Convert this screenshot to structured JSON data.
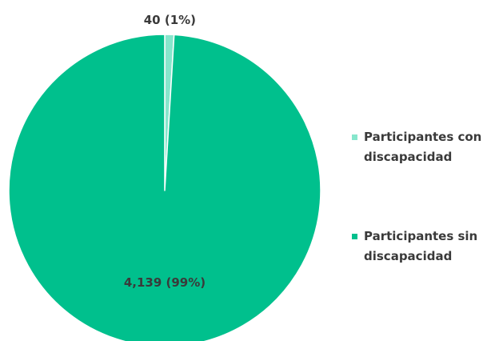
{
  "chart_data": {
    "type": "pie",
    "series": [
      {
        "name": "Participantes con discapacidad",
        "value": 40,
        "label": "40 (1%)",
        "color": "#86e6cc"
      },
      {
        "name": "Participantes sin discapacidad",
        "value": 4139,
        "label": "4,139 (99%)",
        "color": "#00c08d"
      }
    ],
    "legend_position": "right",
    "legend": [
      {
        "lines": [
          "Participantes con",
          "discapacidad"
        ],
        "color": "#86e6cc"
      },
      {
        "lines": [
          "Participantes sin",
          "discapacidad"
        ],
        "color": "#00c08d"
      }
    ]
  }
}
